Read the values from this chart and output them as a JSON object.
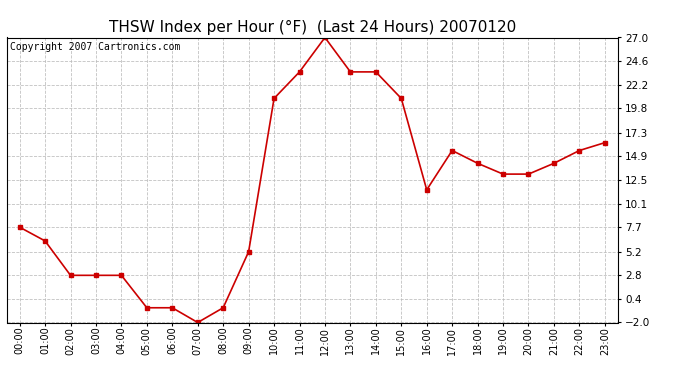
{
  "title": "THSW Index per Hour (°F)  (Last 24 Hours) 20070120",
  "copyright": "Copyright 2007 Cartronics.com",
  "hours": [
    0,
    1,
    2,
    3,
    4,
    5,
    6,
    7,
    8,
    9,
    10,
    11,
    12,
    13,
    14,
    15,
    16,
    17,
    18,
    19,
    20,
    21,
    22,
    23
  ],
  "values": [
    7.7,
    6.3,
    2.8,
    2.8,
    2.8,
    -0.5,
    -0.5,
    -2.0,
    -0.5,
    5.2,
    20.8,
    23.5,
    27.0,
    23.5,
    23.5,
    20.8,
    11.5,
    15.5,
    14.2,
    13.1,
    13.1,
    14.2,
    15.5,
    16.3
  ],
  "yticks": [
    -2.0,
    0.4,
    2.8,
    5.2,
    7.7,
    10.1,
    12.5,
    14.9,
    17.3,
    19.8,
    22.2,
    24.6,
    27.0
  ],
  "ylim": [
    -2.0,
    27.0
  ],
  "line_color": "#cc0000",
  "marker_color": "#cc0000",
  "bg_color": "#ffffff",
  "plot_bg_color": "#ffffff",
  "grid_color": "#bbbbbb",
  "title_fontsize": 11,
  "copyright_fontsize": 7
}
